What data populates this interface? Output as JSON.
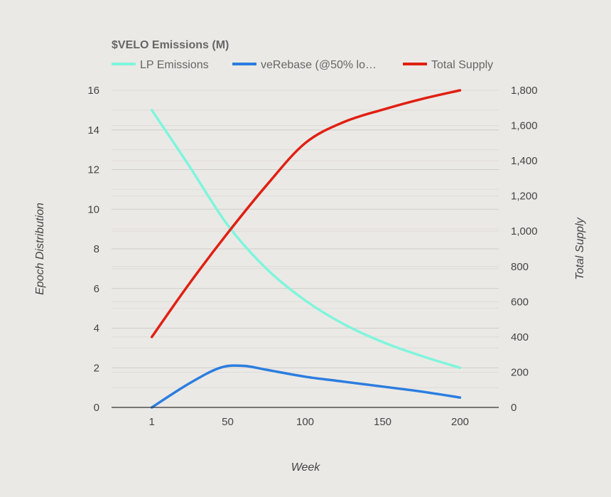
{
  "colors": {
    "background": "#ebe9e5",
    "lp": "#7ff5dc",
    "verebase": "#2b7de0",
    "supply": "#e01f12"
  },
  "chart_data": {
    "type": "line",
    "title": "$VELO Emissions (M)",
    "xlabel": "Week",
    "ylabel_left": "Epoch Distribution",
    "ylabel_right": "Total Supply",
    "x_ticks": [
      "1",
      "50",
      "100",
      "150",
      "200"
    ],
    "xlim": [
      -25,
      225
    ],
    "ylim_left": [
      0,
      16
    ],
    "ylim_right": [
      0,
      1800
    ],
    "y_ticks_left": [
      "0",
      "2",
      "4",
      "6",
      "8",
      "10",
      "12",
      "14",
      "16"
    ],
    "y_ticks_right": [
      "0",
      "200",
      "400",
      "600",
      "800",
      "1,000",
      "1,200",
      "1,400",
      "1,600",
      "1,800"
    ],
    "grid": true,
    "legend_position": "top",
    "series": [
      {
        "name": "LP Emissions",
        "axis": "left",
        "color": "#7ff5dc",
        "points": [
          [
            1,
            15.0
          ],
          [
            25,
            12.2
          ],
          [
            50,
            9.2
          ],
          [
            75,
            7.0
          ],
          [
            100,
            5.4
          ],
          [
            125,
            4.2
          ],
          [
            150,
            3.3
          ],
          [
            175,
            2.6
          ],
          [
            200,
            2.0
          ]
        ]
      },
      {
        "name": "veRebase (@50% lo…",
        "axis": "left",
        "color": "#2b7de0",
        "points": [
          [
            1,
            0.0
          ],
          [
            25,
            1.2
          ],
          [
            45,
            2.0
          ],
          [
            60,
            2.1
          ],
          [
            75,
            1.9
          ],
          [
            100,
            1.55
          ],
          [
            125,
            1.3
          ],
          [
            150,
            1.05
          ],
          [
            175,
            0.8
          ],
          [
            200,
            0.5
          ]
        ]
      },
      {
        "name": "Total Supply",
        "axis": "right",
        "color": "#e01f12",
        "points": [
          [
            1,
            400
          ],
          [
            25,
            700
          ],
          [
            50,
            990
          ],
          [
            75,
            1260
          ],
          [
            100,
            1500
          ],
          [
            125,
            1620
          ],
          [
            150,
            1690
          ],
          [
            175,
            1750
          ],
          [
            200,
            1800
          ]
        ]
      }
    ]
  }
}
